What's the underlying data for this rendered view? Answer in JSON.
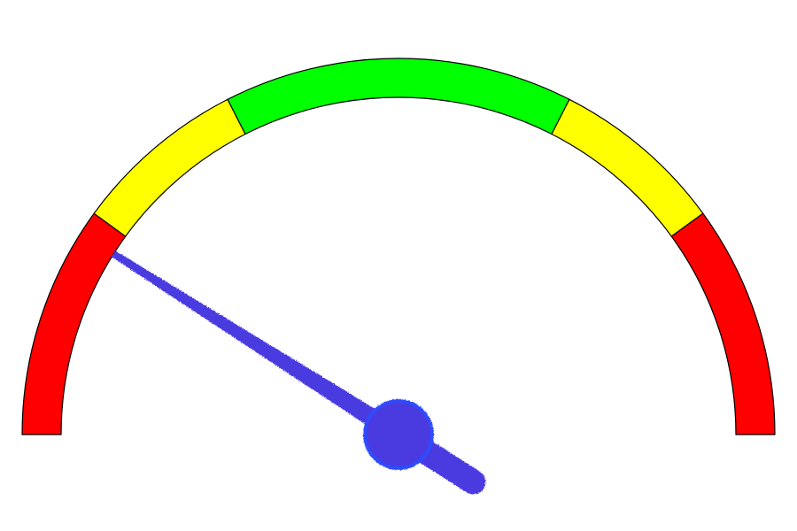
{
  "chart_data": {
    "type": "gauge",
    "range": [
      0,
      100
    ],
    "value": 18,
    "bands": [
      {
        "from": 0,
        "to": 20,
        "color": "#ff0000"
      },
      {
        "from": 20,
        "to": 35,
        "color": "#ffff00"
      },
      {
        "from": 35,
        "to": 65,
        "color": "#00ff00"
      },
      {
        "from": 65,
        "to": 80,
        "color": "#ffff00"
      },
      {
        "from": 80,
        "to": 100,
        "color": "#ff0000"
      }
    ],
    "band_outline_color": "#000000",
    "needle_color": "#4a3be0",
    "needle_outline_color": "#2e4bff",
    "ticks_shown": false,
    "labels_shown": false
  }
}
